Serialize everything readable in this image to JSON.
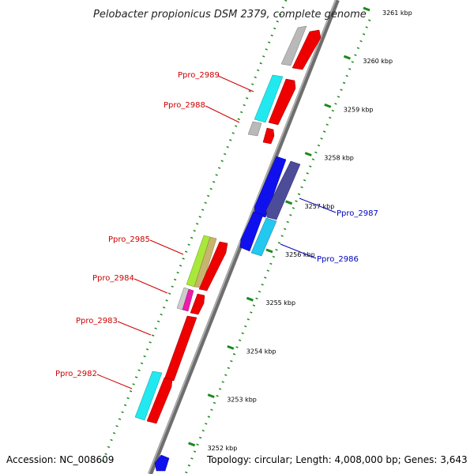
{
  "title": "Pelobacter propionicus DSM 2379, complete genome",
  "footer": {
    "accession": "Accession: NC_008609",
    "summary": "Topology: circular; Length: 4,008,000 bp; Genes: 3,643"
  },
  "colors": {
    "backbone": "#7a7a7a",
    "tick": "#1a8a1a",
    "label_left": "#cc0000",
    "label_right": "#0000bb"
  },
  "ticks": [
    {
      "label": "3261 kbp"
    },
    {
      "label": "3260 kbp"
    },
    {
      "label": "3259 kbp"
    },
    {
      "label": "3258 kbp"
    },
    {
      "label": "3257 kbp"
    },
    {
      "label": "3256 kbp"
    },
    {
      "label": "3255 kbp"
    },
    {
      "label": "3254 kbp"
    },
    {
      "label": "3253 kbp"
    },
    {
      "label": "3252 kbp"
    }
  ],
  "gene_labels": [
    {
      "text": "Ppro_2989",
      "side": "left"
    },
    {
      "text": "Ppro_2988",
      "side": "left"
    },
    {
      "text": "Ppro_2987",
      "side": "right"
    },
    {
      "text": "Ppro_2986",
      "side": "right"
    },
    {
      "text": "Ppro_2985",
      "side": "left"
    },
    {
      "text": "Ppro_2984",
      "side": "left"
    },
    {
      "text": "Ppro_2983",
      "side": "left"
    },
    {
      "text": "Ppro_2982",
      "side": "left"
    }
  ]
}
